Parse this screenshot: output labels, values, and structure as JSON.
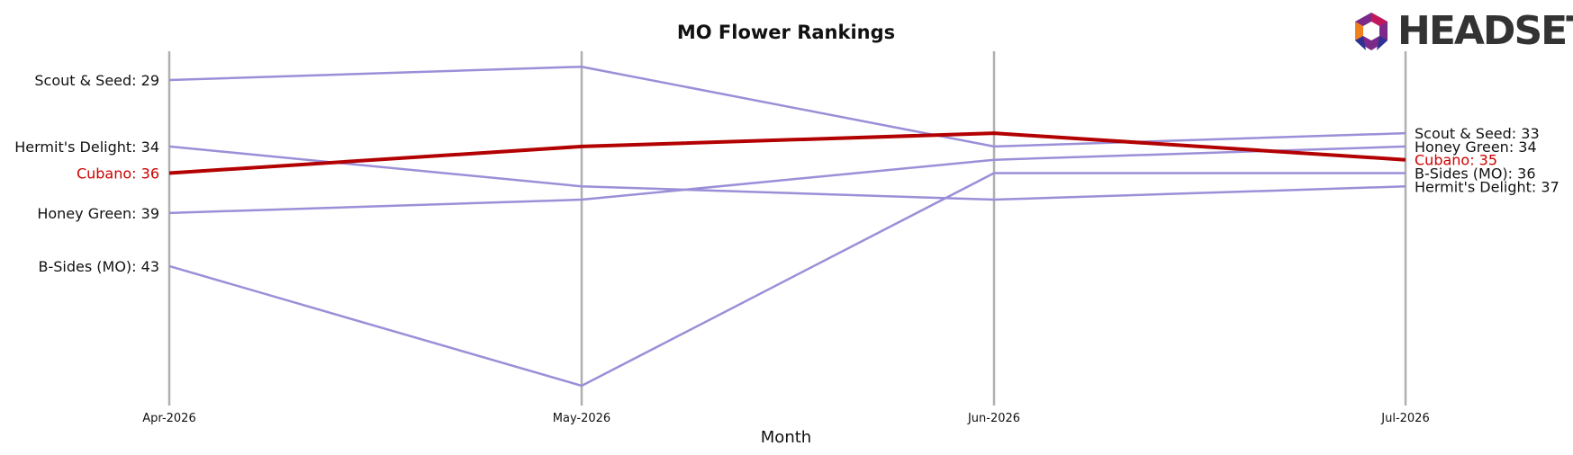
{
  "brand": {
    "word": "HEADSET"
  },
  "chart_data": {
    "type": "line",
    "title": "MO Flower Rankings",
    "xlabel": "Month",
    "ylabel": "",
    "categories": [
      "Apr-2026",
      "May-2026",
      "Jun-2026",
      "Jul-2026"
    ],
    "y_inverted": true,
    "ylim": [
      27,
      54
    ],
    "grid": false,
    "highlight": "Cubano",
    "colors": {
      "highlight": "#b30000",
      "other": "#9b8fd8",
      "axis": "#b0b0b0",
      "highlight_label": "#cc0000"
    },
    "series": [
      {
        "name": "Scout & Seed",
        "values": [
          29,
          28,
          34,
          33
        ],
        "start_label": "Scout & Seed: 29",
        "end_label": "Scout & Seed: 33"
      },
      {
        "name": "Hermit's Delight",
        "values": [
          34,
          37,
          38,
          37
        ],
        "start_label": "Hermit's Delight: 34",
        "end_label": "Hermit's Delight: 37"
      },
      {
        "name": "Cubano",
        "values": [
          36,
          34,
          33,
          35
        ],
        "start_label": "Cubano: 36",
        "end_label": "Cubano: 35"
      },
      {
        "name": "Honey Green",
        "values": [
          39,
          38,
          35,
          34
        ],
        "start_label": "Honey Green: 39",
        "end_label": "Honey Green: 34"
      },
      {
        "name": "B-Sides (MO)",
        "values": [
          43,
          52,
          36,
          36
        ],
        "start_label": "B-Sides (MO): 43",
        "end_label": "B-Sides (MO): 36"
      }
    ]
  }
}
